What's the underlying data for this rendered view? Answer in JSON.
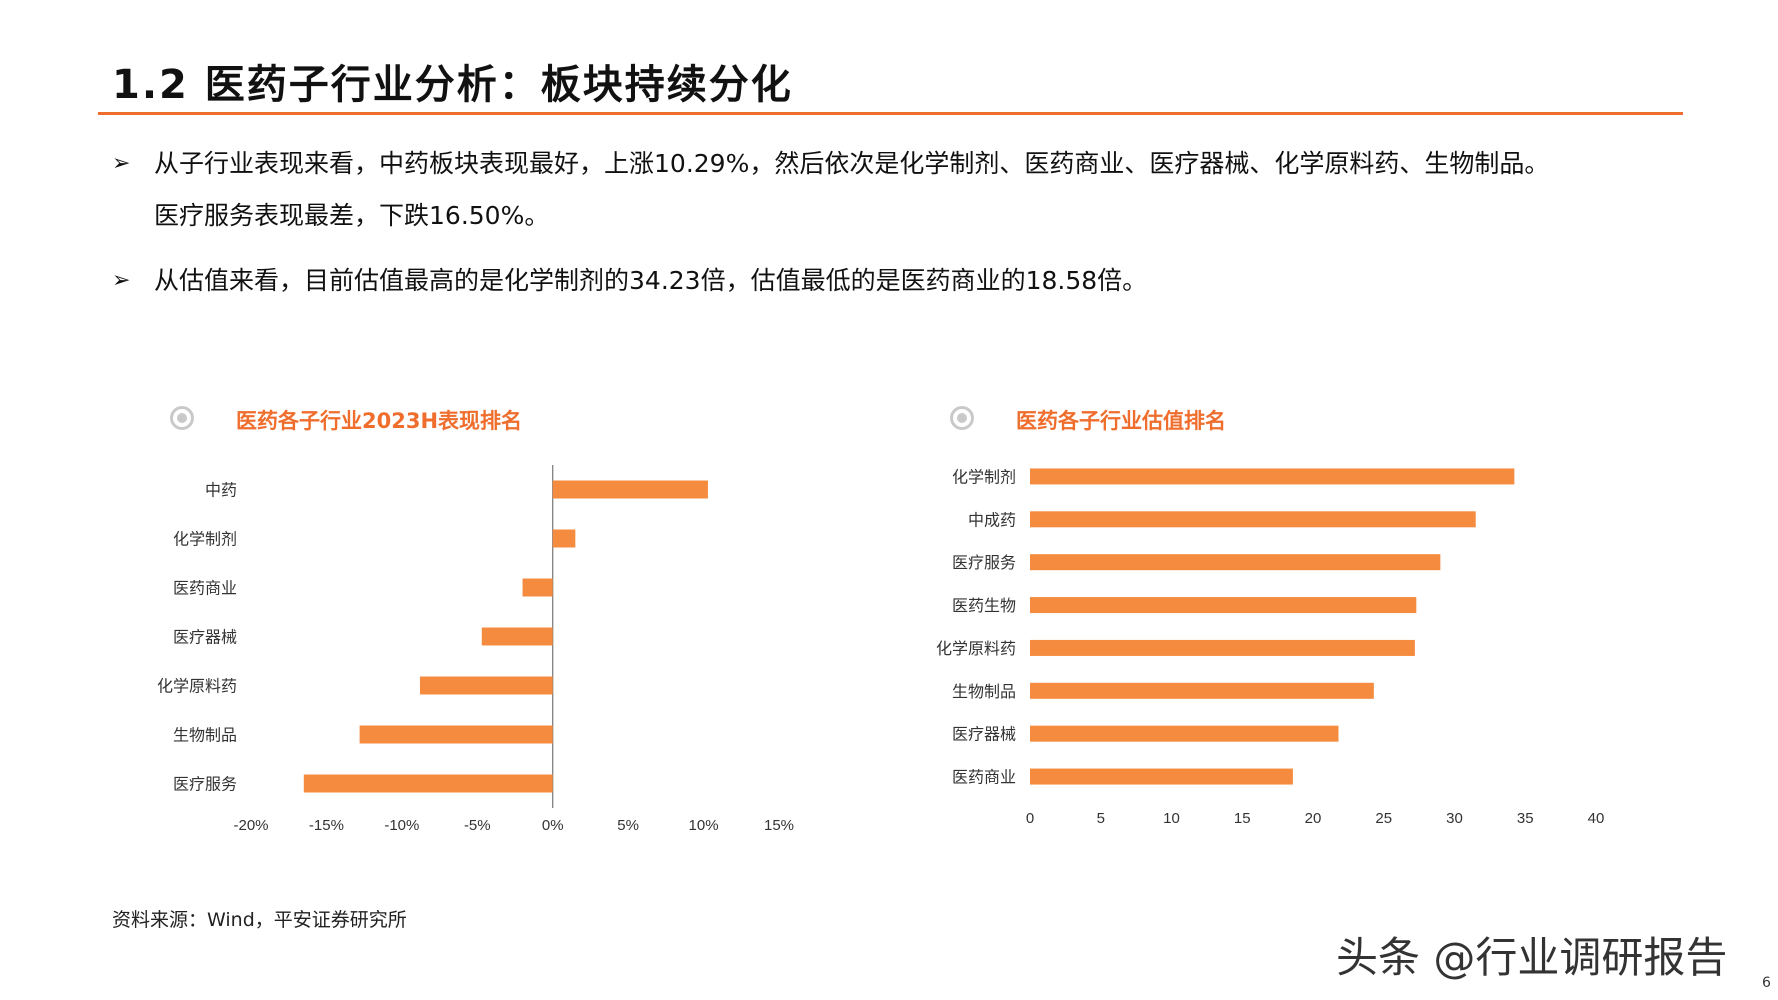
{
  "title": "1.2 医药子行业分析：板块持续分化",
  "bullets": {
    "marker": "➢",
    "line1": "从子行业表现来看，中药板块表现最好，上涨10.29%，然后依次是化学制剂、医药商业、医疗器械、化学原料药、生物制品。",
    "line1b": "医疗服务表现最差，下跌16.50%。",
    "line2": "从估值来看，目前估值最高的是化学制剂的34.23倍，估值最低的是医药商业的18.58倍。"
  },
  "chart_data": [
    {
      "type": "bar",
      "orientation": "horizontal",
      "title": "医药各子行业2023H表现排名",
      "categories": [
        "中药",
        "化学制剂",
        "医药商业",
        "医疗器械",
        "化学原料药",
        "生物制品",
        "医疗服务"
      ],
      "values": [
        10.29,
        1.5,
        -2.0,
        -4.7,
        -8.8,
        -12.8,
        -16.5
      ],
      "unit": "%",
      "xlim": [
        -20,
        15
      ],
      "xticks": [
        -20,
        -15,
        -10,
        -5,
        0,
        5,
        10,
        15
      ],
      "xtick_labels": [
        "-20%",
        "-15%",
        "-10%",
        "-5%",
        "0%",
        "5%",
        "10%",
        "15%"
      ],
      "color": "#f58b3f"
    },
    {
      "type": "bar",
      "orientation": "horizontal",
      "title": "医药各子行业估值排名",
      "categories": [
        "化学制剂",
        "中成药",
        "医疗服务",
        "医药生物",
        "化学原料药",
        "生物制品",
        "医疗器械",
        "医药商业"
      ],
      "values": [
        34.23,
        31.5,
        29.0,
        27.3,
        27.2,
        24.3,
        21.8,
        18.58
      ],
      "xlim": [
        0,
        40
      ],
      "xticks": [
        0,
        5,
        10,
        15,
        20,
        25,
        30,
        35,
        40
      ],
      "xtick_labels": [
        "0",
        "5",
        "10",
        "15",
        "20",
        "25",
        "30",
        "35",
        "40"
      ],
      "color": "#f58b3f"
    }
  ],
  "source": "资料来源：Wind，平安证券研究所",
  "watermark": "头条 @行业调研报告",
  "page_number": "6"
}
